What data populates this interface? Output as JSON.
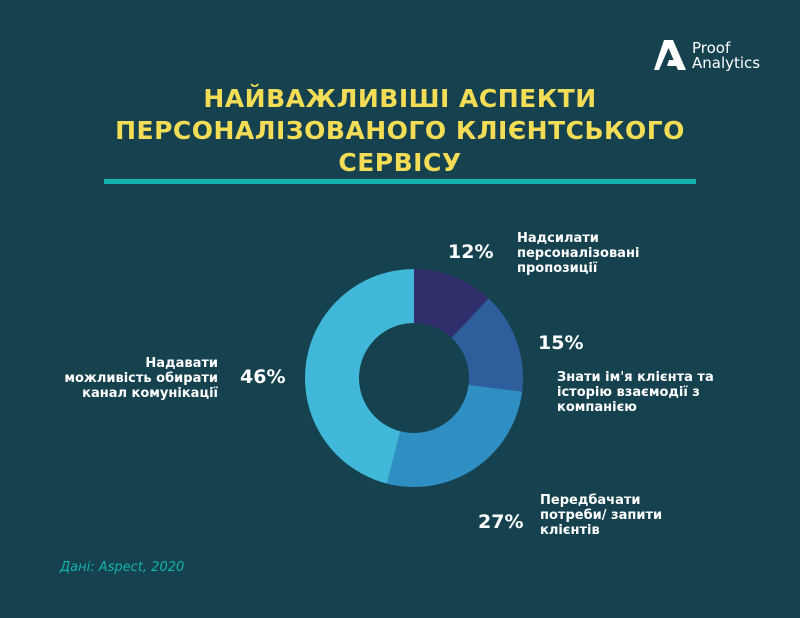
{
  "logo": {
    "line1": "Proof",
    "line2": "Analytics"
  },
  "title": {
    "lines": [
      "НАЙВАЖЛИВІШІ АСПЕКТИ",
      "ПЕРСОНАЛІЗОВАНОГО КЛІЄНТСЬКОГО",
      "СЕРВІСУ"
    ]
  },
  "chart_data": {
    "type": "pie",
    "title": "НАЙВАЖЛИВІШІ АСПЕКТИ ПЕРСОНАЛІЗОВАНОГО КЛІЄНТСЬКОГО СЕРВІСУ",
    "unit": "%",
    "slices": [
      {
        "pct_label": "12%",
        "value": 12,
        "label_lines": [
          "Надсилати",
          "персоналізовані",
          "пропозиції"
        ],
        "color": "#302f6b"
      },
      {
        "pct_label": "15%",
        "value": 15,
        "label_lines": [
          "Знати ім'я клієнта та",
          "історію взаємодії з",
          "компанією"
        ],
        "color": "#2e5e9c"
      },
      {
        "pct_label": "27%",
        "value": 27,
        "label_lines": [
          "Передбачати",
          "потреби/ запити",
          "клієнтів"
        ],
        "color": "#2f8fc3"
      },
      {
        "pct_label": "46%",
        "value": 46,
        "label_lines": [
          "Надавати",
          "можливість обирати",
          "канал комунікації"
        ],
        "color": "#41b8d9"
      }
    ]
  },
  "source": "Дані: Aspect, 2020",
  "colors": {
    "background": "#16424f",
    "title": "#f3dd57",
    "accent": "#13b3ad"
  }
}
